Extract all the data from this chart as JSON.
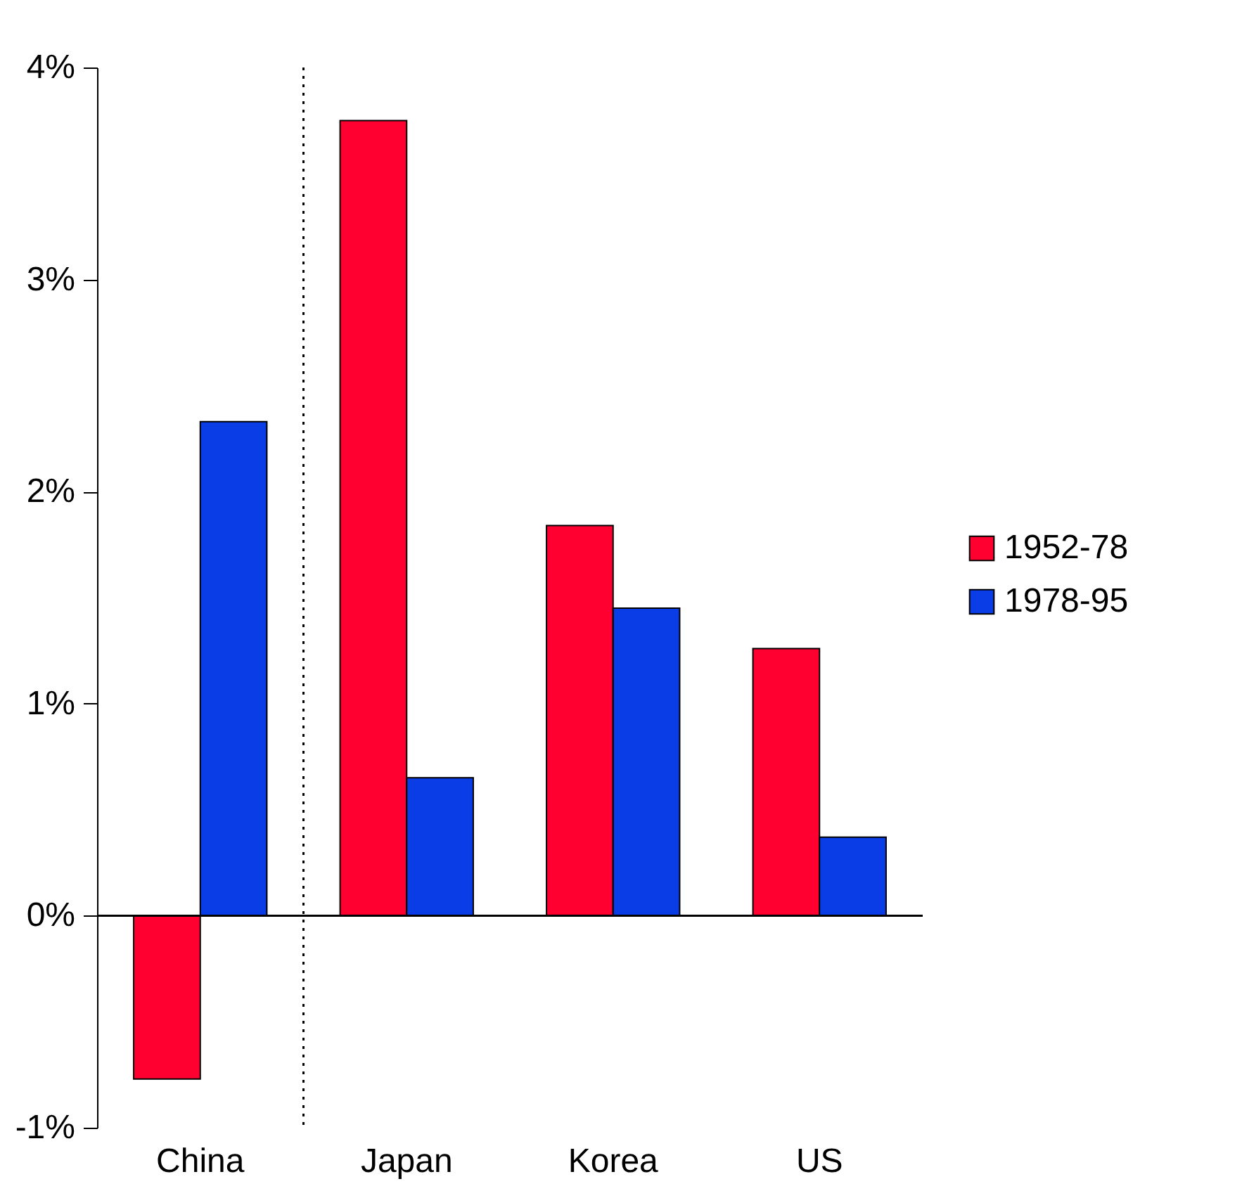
{
  "chart_data": {
    "type": "bar",
    "categories": [
      "China",
      "Japan",
      "Korea",
      "US"
    ],
    "series": [
      {
        "name": "1952-78",
        "color": "#ff0030",
        "values": [
          -0.77,
          3.75,
          1.84,
          1.26
        ]
      },
      {
        "name": "1978-95",
        "color": "#0a3de6",
        "values": [
          2.33,
          0.65,
          1.45,
          0.37
        ]
      }
    ],
    "ylim": [
      -1,
      4
    ],
    "yticks": [
      {
        "value": -1,
        "label": "-1%"
      },
      {
        "value": 0,
        "label": "0%"
      },
      {
        "value": 1,
        "label": "1%"
      },
      {
        "value": 2,
        "label": "2%"
      },
      {
        "value": 3,
        "label": "3%"
      },
      {
        "value": 4,
        "label": "4%"
      }
    ],
    "ref_lines": [
      {
        "axis": "x",
        "value": "China",
        "line_style": "dotted",
        "color": "#000000"
      }
    ],
    "legend": "right"
  }
}
